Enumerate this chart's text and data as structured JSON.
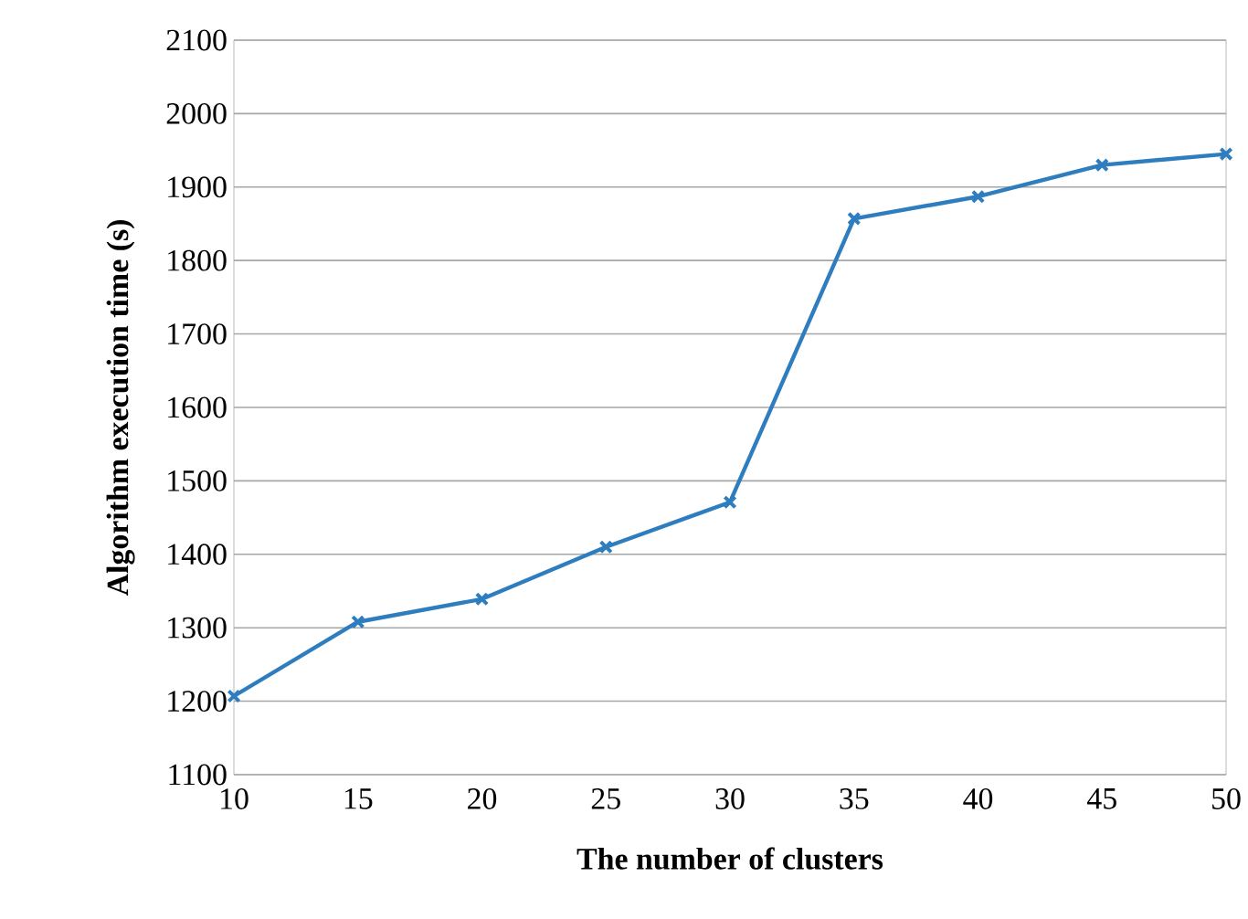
{
  "chart_data": {
    "type": "line",
    "xlabel": "The number of clusters",
    "ylabel": "Algorithm execution time (s)",
    "x": [
      10,
      15,
      20,
      25,
      30,
      35,
      40,
      45,
      50
    ],
    "series": [
      {
        "color": "#2e7dbf",
        "values": [
          1207,
          1308,
          1339,
          1410,
          1471,
          1857,
          1887,
          1930,
          1945
        ]
      }
    ],
    "xlim": [
      10,
      50
    ],
    "xticks": [
      10,
      15,
      20,
      25,
      30,
      35,
      40,
      45,
      50
    ],
    "ylim": [
      1100,
      2100
    ],
    "yticks": [
      1100,
      1200,
      1300,
      1400,
      1500,
      1600,
      1700,
      1800,
      1900,
      2000,
      2100
    ],
    "grid": "y",
    "marker": "cross",
    "line_style": "solid"
  }
}
